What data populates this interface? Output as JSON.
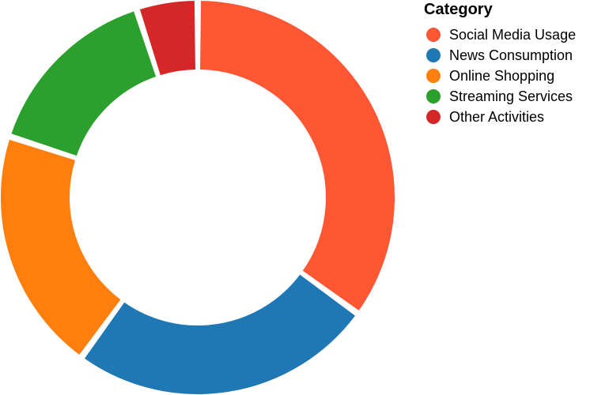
{
  "chart_data": {
    "type": "pie",
    "variant": "donut",
    "legend": {
      "title": "Category",
      "placement": "top-right"
    },
    "categories": [
      "Social Media Usage",
      "News Consumption",
      "Online Shopping",
      "Streaming Services",
      "Other Activities"
    ],
    "values": [
      35,
      25,
      20,
      15,
      5
    ],
    "colors": [
      "#ff5733",
      "#1f77b4",
      "#ff7f0e",
      "#2ca02c",
      "#d62728"
    ]
  }
}
